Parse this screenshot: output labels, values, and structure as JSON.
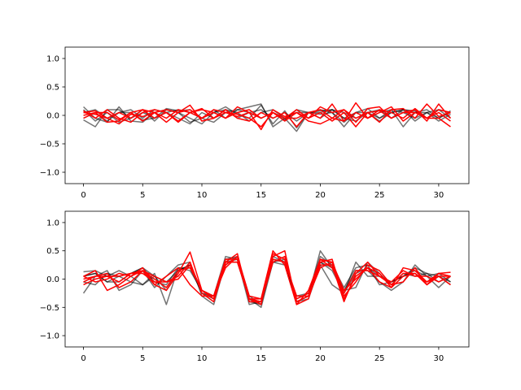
{
  "chart_data": [
    {
      "type": "line",
      "title": "",
      "xlabel": "",
      "ylabel": "",
      "xlim": [
        -1.55,
        32.55
      ],
      "ylim": [
        -1.2,
        1.2
      ],
      "xticks": [
        0,
        5,
        10,
        15,
        20,
        25,
        30
      ],
      "yticks": [
        1.0,
        0.5,
        0.0,
        -0.5,
        -1.0
      ],
      "x_tick_labels": [
        "0",
        "5",
        "10",
        "15",
        "20",
        "25",
        "30"
      ],
      "y_tick_labels": [
        "1.0",
        "0.5",
        "0.0",
        "−0.5",
        "−1.0"
      ],
      "grid": false,
      "x": [
        0,
        1,
        2,
        3,
        4,
        5,
        6,
        7,
        8,
        9,
        10,
        11,
        12,
        13,
        14,
        15,
        16,
        17,
        18,
        19,
        20,
        21,
        22,
        23,
        24,
        25,
        26,
        27,
        28,
        29,
        30,
        31
      ],
      "series": [
        {
          "color": "#000000",
          "opacity": 0.55,
          "values": [
            0.15,
            -0.05,
            -0.12,
            0.15,
            -0.1,
            -0.12,
            0.05,
            0.1,
            0.05,
            -0.05,
            -0.15,
            0.05,
            0.15,
            0.02,
            -0.05,
            0.18,
            -0.15,
            0.08,
            -0.22,
            0.05,
            0.02,
            0.05,
            -0.2,
            0.05,
            0.05,
            -0.1,
            0.05,
            0.1,
            0.08,
            -0.05,
            0.1,
            0.05
          ]
        },
        {
          "color": "#000000",
          "opacity": 0.55,
          "values": [
            -0.08,
            -0.2,
            0.1,
            0.1,
            -0.05,
            0.05,
            -0.05,
            0.12,
            0.08,
            0.1,
            -0.05,
            -0.12,
            0.05,
            0.1,
            0.15,
            0.2,
            -0.2,
            -0.05,
            -0.28,
            0.05,
            0.05,
            0.1,
            -0.05,
            -0.1,
            0.05,
            -0.05,
            0.1,
            -0.2,
            0.05,
            0.05,
            -0.1,
            0.02
          ]
        },
        {
          "color": "#000000",
          "opacity": 0.55,
          "values": [
            0.1,
            -0.1,
            0.05,
            -0.12,
            -0.05,
            0.1,
            -0.1,
            0.1,
            0.05,
            -0.12,
            -0.05,
            0.1,
            -0.05,
            0.1,
            0.05,
            -0.05,
            0.05,
            -0.08,
            0.1,
            0.05,
            0.1,
            0.05,
            -0.12,
            0.05,
            -0.05,
            0.05,
            0.1,
            0.05,
            -0.05,
            0.05,
            0.1,
            -0.05
          ]
        },
        {
          "color": "#000000",
          "opacity": 0.55,
          "values": [
            -0.05,
            0.05,
            -0.1,
            0.05,
            0.1,
            -0.05,
            0.1,
            0.05,
            -0.05,
            -0.15,
            0.05,
            -0.05,
            0.1,
            0.05,
            -0.1,
            0.05,
            0.1,
            -0.05,
            0.05,
            0.05,
            0.08,
            0.1,
            -0.05,
            0.05,
            0.12,
            -0.05,
            0.05,
            0.1,
            -0.1,
            0.05,
            -0.05,
            0.08
          ]
        },
        {
          "color": "#000000",
          "opacity": 0.55,
          "values": [
            0.05,
            0.1,
            -0.05,
            0.05,
            0.05,
            -0.08,
            -0.05,
            0.05,
            0.1,
            0.05,
            -0.05,
            0.05,
            0.1,
            -0.05,
            0.05,
            0.1,
            -0.05,
            0.05,
            -0.1,
            0.05,
            -0.05,
            0.1,
            0.05,
            -0.05,
            0.05,
            0.1,
            -0.05,
            0.1,
            0.05,
            0.1,
            -0.05,
            0.05
          ]
        },
        {
          "color": "#ff0000",
          "opacity": 1,
          "values": [
            0.05,
            0.02,
            -0.05,
            -0.15,
            0.02,
            -0.02,
            0.05,
            -0.05,
            0.1,
            0.05,
            -0.05,
            0.1,
            0.05,
            0.02,
            -0.05,
            -0.2,
            0.05,
            -0.05,
            -0.05,
            0.05,
            -0.05,
            0.2,
            -0.1,
            0.22,
            -0.05,
            0.05,
            0.15,
            -0.1,
            0.05,
            -0.05,
            -0.05,
            -0.2
          ]
        },
        {
          "color": "#ff0000",
          "opacity": 1,
          "values": [
            0.0,
            0.05,
            -0.12,
            -0.1,
            0.05,
            0.1,
            0.05,
            -0.12,
            0.05,
            0.18,
            -0.1,
            -0.05,
            0.05,
            -0.02,
            0.05,
            -0.25,
            0.1,
            -0.02,
            0.05,
            -0.1,
            -0.15,
            -0.05,
            0.1,
            -0.12,
            0.12,
            0.15,
            -0.05,
            0.05,
            0.1,
            -0.1,
            0.2,
            -0.05
          ]
        },
        {
          "color": "#ff0000",
          "opacity": 1,
          "values": [
            0.08,
            -0.05,
            0.1,
            -0.05,
            -0.12,
            0.05,
            0.1,
            0.05,
            -0.1,
            0.05,
            0.12,
            -0.05,
            0.1,
            -0.05,
            -0.1,
            0.05,
            -0.05,
            0.05,
            -0.2,
            0.05,
            0.1,
            -0.05,
            -0.1,
            0.05,
            -0.05,
            0.1,
            0.05,
            -0.05,
            0.12,
            -0.05,
            0.05,
            -0.1
          ]
        },
        {
          "color": "#ff0000",
          "opacity": 1,
          "values": [
            -0.05,
            0.05,
            0.05,
            -0.08,
            0.05,
            -0.1,
            0.05,
            0.1,
            0.05,
            0.1,
            -0.05,
            0.05,
            -0.05,
            0.15,
            0.05,
            -0.05,
            0.05,
            -0.1,
            0.05,
            -0.05,
            0.15,
            0.05,
            0.1,
            -0.05,
            0.05,
            -0.12,
            0.1,
            0.12,
            -0.05,
            0.2,
            -0.02,
            0.05
          ]
        },
        {
          "color": "#ff0000",
          "opacity": 1,
          "values": [
            0.05,
            0.08,
            -0.05,
            0.05,
            -0.05,
            0.1,
            -0.05,
            0.05,
            -0.12,
            0.05,
            0.1,
            0.05,
            -0.05,
            0.05,
            0.1,
            -0.05,
            0.05,
            -0.05,
            0.1,
            -0.05,
            0.05,
            -0.1,
            0.05,
            -0.2,
            0.05,
            0.08,
            -0.05,
            0.05,
            0.05,
            -0.05,
            0.1,
            0.05
          ]
        }
      ]
    },
    {
      "type": "line",
      "title": "",
      "xlabel": "",
      "ylabel": "",
      "xlim": [
        -1.55,
        32.55
      ],
      "ylim": [
        -1.2,
        1.2
      ],
      "xticks": [
        0,
        5,
        10,
        15,
        20,
        25,
        30
      ],
      "yticks": [
        1.0,
        0.5,
        0.0,
        -0.5,
        -1.0
      ],
      "x_tick_labels": [
        "0",
        "5",
        "10",
        "15",
        "20",
        "25",
        "30"
      ],
      "y_tick_labels": [
        "1.0",
        "0.5",
        "0.0",
        "−0.5",
        "−1.0"
      ],
      "grid": false,
      "x": [
        0,
        1,
        2,
        3,
        4,
        5,
        6,
        7,
        8,
        9,
        10,
        11,
        12,
        13,
        14,
        15,
        16,
        17,
        18,
        19,
        20,
        21,
        22,
        23,
        24,
        25,
        26,
        27,
        28,
        29,
        30,
        31
      ],
      "series": [
        {
          "color": "#000000",
          "opacity": 0.55,
          "values": [
            0.13,
            0.15,
            0.05,
            0.15,
            0.05,
            -0.1,
            0.1,
            -0.45,
            0.2,
            0.2,
            -0.25,
            -0.3,
            0.4,
            0.35,
            -0.45,
            -0.4,
            0.35,
            0.3,
            -0.4,
            -0.35,
            0.25,
            -0.1,
            -0.25,
            0.3,
            0.05,
            0.05,
            -0.05,
            0.05,
            0.2,
            0.1,
            0.05,
            -0.05
          ]
        },
        {
          "color": "#000000",
          "opacity": 0.55,
          "values": [
            -0.25,
            0.05,
            0.15,
            -0.2,
            -0.1,
            0.15,
            -0.15,
            0.05,
            0.25,
            0.3,
            -0.3,
            -0.45,
            0.3,
            0.3,
            -0.35,
            -0.5,
            0.3,
            0.35,
            -0.4,
            -0.3,
            0.5,
            0.2,
            -0.2,
            0.15,
            0.15,
            -0.05,
            -0.2,
            -0.05,
            0.25,
            0.05,
            -0.15,
            0.05
          ]
        },
        {
          "color": "#000000",
          "opacity": 0.55,
          "values": [
            0.05,
            0.1,
            -0.05,
            -0.05,
            0.1,
            0.2,
            -0.05,
            -0.1,
            0.2,
            0.15,
            -0.2,
            -0.35,
            0.25,
            0.4,
            -0.3,
            -0.45,
            0.4,
            0.3,
            -0.35,
            -0.25,
            0.3,
            0.15,
            -0.25,
            0.1,
            0.2,
            0.05,
            -0.05,
            0.05,
            0.1,
            -0.05,
            0.05,
            -0.1
          ]
        },
        {
          "color": "#000000",
          "opacity": 0.55,
          "values": [
            -0.05,
            -0.1,
            0.1,
            0.05,
            -0.05,
            -0.1,
            0.05,
            -0.05,
            0.15,
            0.25,
            -0.2,
            -0.3,
            0.3,
            0.35,
            -0.35,
            -0.4,
            0.3,
            0.25,
            -0.3,
            -0.25,
            0.4,
            0.25,
            -0.15,
            0.2,
            0.25,
            -0.1,
            -0.05,
            0.05,
            0.15,
            0.05,
            0.1,
            -0.05
          ]
        },
        {
          "color": "#000000",
          "opacity": 0.55,
          "values": [
            0.05,
            0.1,
            -0.05,
            0.05,
            0.1,
            0.2,
            0.05,
            -0.2,
            0.15,
            0.25,
            -0.25,
            -0.35,
            0.35,
            0.4,
            -0.4,
            -0.45,
            0.35,
            0.3,
            -0.4,
            -0.3,
            0.3,
            0.2,
            -0.2,
            -0.15,
            0.3,
            0.1,
            -0.1,
            0.1,
            0.05,
            0.1,
            -0.05,
            0.05
          ]
        },
        {
          "color": "#ff0000",
          "opacity": 1,
          "values": [
            0.05,
            0.15,
            -0.2,
            -0.1,
            0.05,
            0.2,
            -0.1,
            -0.2,
            0.1,
            0.48,
            -0.2,
            -0.35,
            0.25,
            0.4,
            -0.35,
            -0.35,
            0.5,
            0.25,
            -0.45,
            -0.2,
            0.35,
            0.3,
            -0.3,
            -0.05,
            0.25,
            0.15,
            -0.1,
            -0.05,
            0.2,
            -0.1,
            0.1,
            0.12
          ]
        },
        {
          "color": "#ff0000",
          "opacity": 1,
          "values": [
            -0.05,
            0.05,
            0.1,
            -0.15,
            -0.05,
            0.15,
            0.05,
            -0.05,
            0.05,
            0.3,
            -0.25,
            -0.4,
            0.3,
            0.45,
            -0.4,
            -0.4,
            0.4,
            0.5,
            -0.45,
            -0.35,
            0.3,
            0.35,
            -0.35,
            0.05,
            0.2,
            -0.05,
            -0.15,
            0.2,
            0.15,
            -0.05,
            0.05,
            -0.1
          ]
        },
        {
          "color": "#ff0000",
          "opacity": 1,
          "values": [
            0.0,
            0.05,
            0.05,
            0.05,
            0.1,
            0.1,
            -0.05,
            -0.05,
            0.0,
            0.25,
            -0.2,
            -0.3,
            0.35,
            0.35,
            -0.35,
            -0.45,
            0.45,
            0.35,
            -0.35,
            -0.25,
            0.25,
            0.25,
            -0.4,
            0.1,
            0.3,
            0.05,
            -0.1,
            0.1,
            0.1,
            -0.1,
            0.05,
            0.05
          ]
        },
        {
          "color": "#ff0000",
          "opacity": 1,
          "values": [
            0.05,
            -0.05,
            0.0,
            0.1,
            0.05,
            0.15,
            -0.1,
            0.05,
            0.2,
            -0.1,
            -0.3,
            -0.3,
            0.2,
            0.4,
            -0.3,
            -0.35,
            0.35,
            0.3,
            -0.3,
            -0.3,
            0.35,
            0.2,
            -0.25,
            0.15,
            0.15,
            0.05,
            -0.05,
            0.15,
            0.05,
            0.05,
            -0.05,
            0.05
          ]
        },
        {
          "color": "#ff0000",
          "opacity": 1,
          "values": [
            -0.1,
            0.0,
            0.05,
            -0.05,
            0.1,
            0.15,
            0.0,
            -0.15,
            0.15,
            0.2,
            -0.2,
            -0.35,
            0.3,
            0.3,
            -0.35,
            -0.4,
            0.3,
            0.4,
            -0.4,
            -0.3,
            0.2,
            0.3,
            -0.2,
            0.0,
            0.2,
            0.1,
            -0.15,
            0.05,
            0.1,
            -0.05,
            0.1,
            0.05
          ]
        }
      ]
    }
  ]
}
